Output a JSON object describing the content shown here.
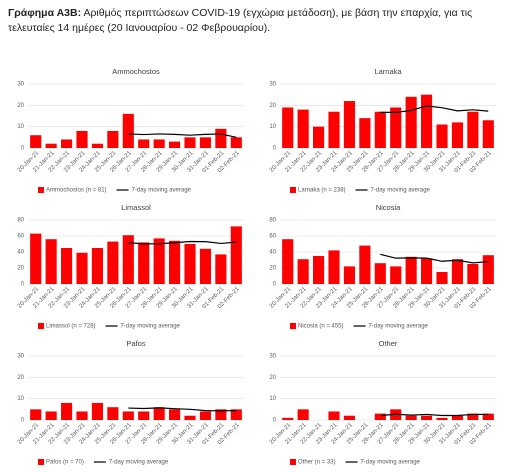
{
  "header": {
    "label": "Γράφημα Α3Β:",
    "text": "Αριθμός περιπτώσεων COVID-19 (εγχώρια μετάδοση), με βάση την επαρχία, για τις τελευταίες 14 ημέρες (20 Ιανουαρίου - 02 Φεβρουαρίου)."
  },
  "chart_data": [
    {
      "type": "bar",
      "title": "Ammochostos",
      "categories": [
        "20-Jan-21",
        "21-Jan-21",
        "22-Jan-21",
        "23-Jan-21",
        "24-Jan-21",
        "25-Jan-21",
        "26-Jan-21",
        "27-Jan-21",
        "28-Jan-21",
        "29-Jan-21",
        "30-Jan-21",
        "31-Jan-21",
        "01-Feb-21",
        "02-Feb-21"
      ],
      "ylim": [
        0,
        30
      ],
      "yticks": [
        0,
        10,
        20,
        30
      ],
      "grid": true,
      "series": [
        {
          "name": "Ammochostos (n = 81)",
          "type": "bar",
          "color": "#ff0000",
          "values": [
            6,
            2,
            4,
            8,
            2,
            8,
            16,
            4,
            4,
            3,
            5,
            5,
            9,
            5
          ]
        },
        {
          "name": "7-day moving average",
          "type": "line",
          "color": "#000000",
          "values": [
            null,
            null,
            null,
            null,
            null,
            null,
            6.6,
            6.3,
            6.6,
            6.4,
            6.0,
            6.4,
            6.6,
            5.0
          ]
        }
      ]
    },
    {
      "type": "bar",
      "title": "Larnaka",
      "categories": [
        "20-Jan-21",
        "21-Jan-21",
        "22-Jan-21",
        "23-Jan-21",
        "24-Jan-21",
        "25-Jan-21",
        "26-Jan-21",
        "27-Jan-21",
        "28-Jan-21",
        "29-Jan-21",
        "30-Jan-21",
        "31-Jan-21",
        "01-Feb-21",
        "02-Feb-21"
      ],
      "ylim": [
        0,
        30
      ],
      "yticks": [
        0,
        10,
        20,
        30
      ],
      "grid": true,
      "series": [
        {
          "name": "Larnaka (n = 238)",
          "type": "bar",
          "color": "#ff0000",
          "values": [
            19,
            18,
            10,
            17,
            22,
            14,
            17,
            19,
            24,
            25,
            11,
            12,
            17,
            13
          ]
        },
        {
          "name": "7-day moving average",
          "type": "line",
          "color": "#000000",
          "values": [
            null,
            null,
            null,
            null,
            null,
            null,
            16.7,
            16.7,
            17.6,
            19.7,
            18.9,
            17.4,
            17.9,
            17.3
          ]
        }
      ]
    },
    {
      "type": "bar",
      "title": "Limassol",
      "categories": [
        "20-Jan-21",
        "21-Jan-21",
        "22-Jan-21",
        "23-Jan-21",
        "24-Jan-21",
        "25-Jan-21",
        "26-Jan-21",
        "27-Jan-21",
        "28-Jan-21",
        "29-Jan-21",
        "30-Jan-21",
        "31-Jan-21",
        "01-Feb-21",
        "02-Feb-21"
      ],
      "ylim": [
        0,
        80
      ],
      "yticks": [
        0,
        20,
        40,
        60,
        80
      ],
      "grid": true,
      "series": [
        {
          "name": "Limassol (n = 728)",
          "type": "bar",
          "color": "#ff0000",
          "values": [
            63,
            56,
            45,
            39,
            45,
            53,
            61,
            52,
            57,
            54,
            50,
            44,
            37,
            72
          ]
        },
        {
          "name": "7-day moving average",
          "type": "line",
          "color": "#000000",
          "values": [
            null,
            null,
            null,
            null,
            null,
            null,
            51.7,
            50.1,
            50.3,
            51.6,
            53.1,
            53.0,
            50.7,
            52.3
          ]
        }
      ]
    },
    {
      "type": "bar",
      "title": "Nicosia",
      "categories": [
        "20-Jan-21",
        "21-Jan-21",
        "22-Jan-21",
        "23-Jan-21",
        "24-Jan-21",
        "25-Jan-21",
        "26-Jan-21",
        "27-Jan-21",
        "28-Jan-21",
        "29-Jan-21",
        "30-Jan-21",
        "31-Jan-21",
        "01-Feb-21",
        "02-Feb-21"
      ],
      "ylim": [
        0,
        80
      ],
      "yticks": [
        0,
        20,
        40,
        60,
        80
      ],
      "grid": true,
      "series": [
        {
          "name": "Nicosia (n = 455)",
          "type": "bar",
          "color": "#ff0000",
          "values": [
            56,
            31,
            35,
            42,
            22,
            48,
            26,
            22,
            34,
            32,
            15,
            31,
            25,
            36
          ]
        },
        {
          "name": "7-day moving average",
          "type": "line",
          "color": "#000000",
          "values": [
            null,
            null,
            null,
            null,
            null,
            null,
            37.1,
            32.3,
            32.7,
            32.3,
            28.4,
            29.7,
            26.4,
            27.9
          ]
        }
      ]
    },
    {
      "type": "bar",
      "title": "Pafos",
      "categories": [
        "20-Jan-21",
        "21-Jan-21",
        "22-Jan-21",
        "23-Jan-21",
        "24-Jan-21",
        "25-Jan-21",
        "26-Jan-21",
        "27-Jan-21",
        "28-Jan-21",
        "29-Jan-21",
        "30-Jan-21",
        "31-Jan-21",
        "01-Feb-21",
        "02-Feb-21"
      ],
      "ylim": [
        0,
        30
      ],
      "yticks": [
        0,
        10,
        20,
        30
      ],
      "grid": true,
      "series": [
        {
          "name": "Pafos (n = 70)",
          "type": "bar",
          "color": "#ff0000",
          "values": [
            5,
            4,
            8,
            4,
            8,
            6,
            4,
            4,
            6,
            5,
            2,
            4,
            5,
            5
          ]
        },
        {
          "name": "7-day moving average",
          "type": "line",
          "color": "#000000",
          "values": [
            null,
            null,
            null,
            null,
            null,
            null,
            5.6,
            5.4,
            5.7,
            5.3,
            5.0,
            4.4,
            4.3,
            4.4
          ]
        }
      ]
    },
    {
      "type": "bar",
      "title": "Other",
      "categories": [
        "20-Jan-21",
        "21-Jan-21",
        "22-Jan-21",
        "23-Jan-21",
        "24-Jan-21",
        "25-Jan-21",
        "26-Jan-21",
        "27-Jan-21",
        "28-Jan-21",
        "29-Jan-21",
        "30-Jan-21",
        "31-Jan-21",
        "01-Feb-21",
        "02-Feb-21"
      ],
      "ylim": [
        0,
        30
      ],
      "yticks": [
        0,
        10,
        20,
        30
      ],
      "grid": true,
      "series": [
        {
          "name": "Other (n = 33)",
          "type": "bar",
          "color": "#ff0000",
          "values": [
            1,
            5,
            0,
            4,
            2,
            0,
            3,
            5,
            2,
            2,
            1,
            2,
            3,
            3
          ]
        },
        {
          "name": "7-day moving average",
          "type": "line",
          "color": "#000000",
          "values": [
            null,
            null,
            null,
            null,
            null,
            null,
            2.1,
            2.7,
            2.3,
            2.6,
            2.1,
            2.1,
            2.6,
            2.6
          ]
        }
      ]
    }
  ]
}
